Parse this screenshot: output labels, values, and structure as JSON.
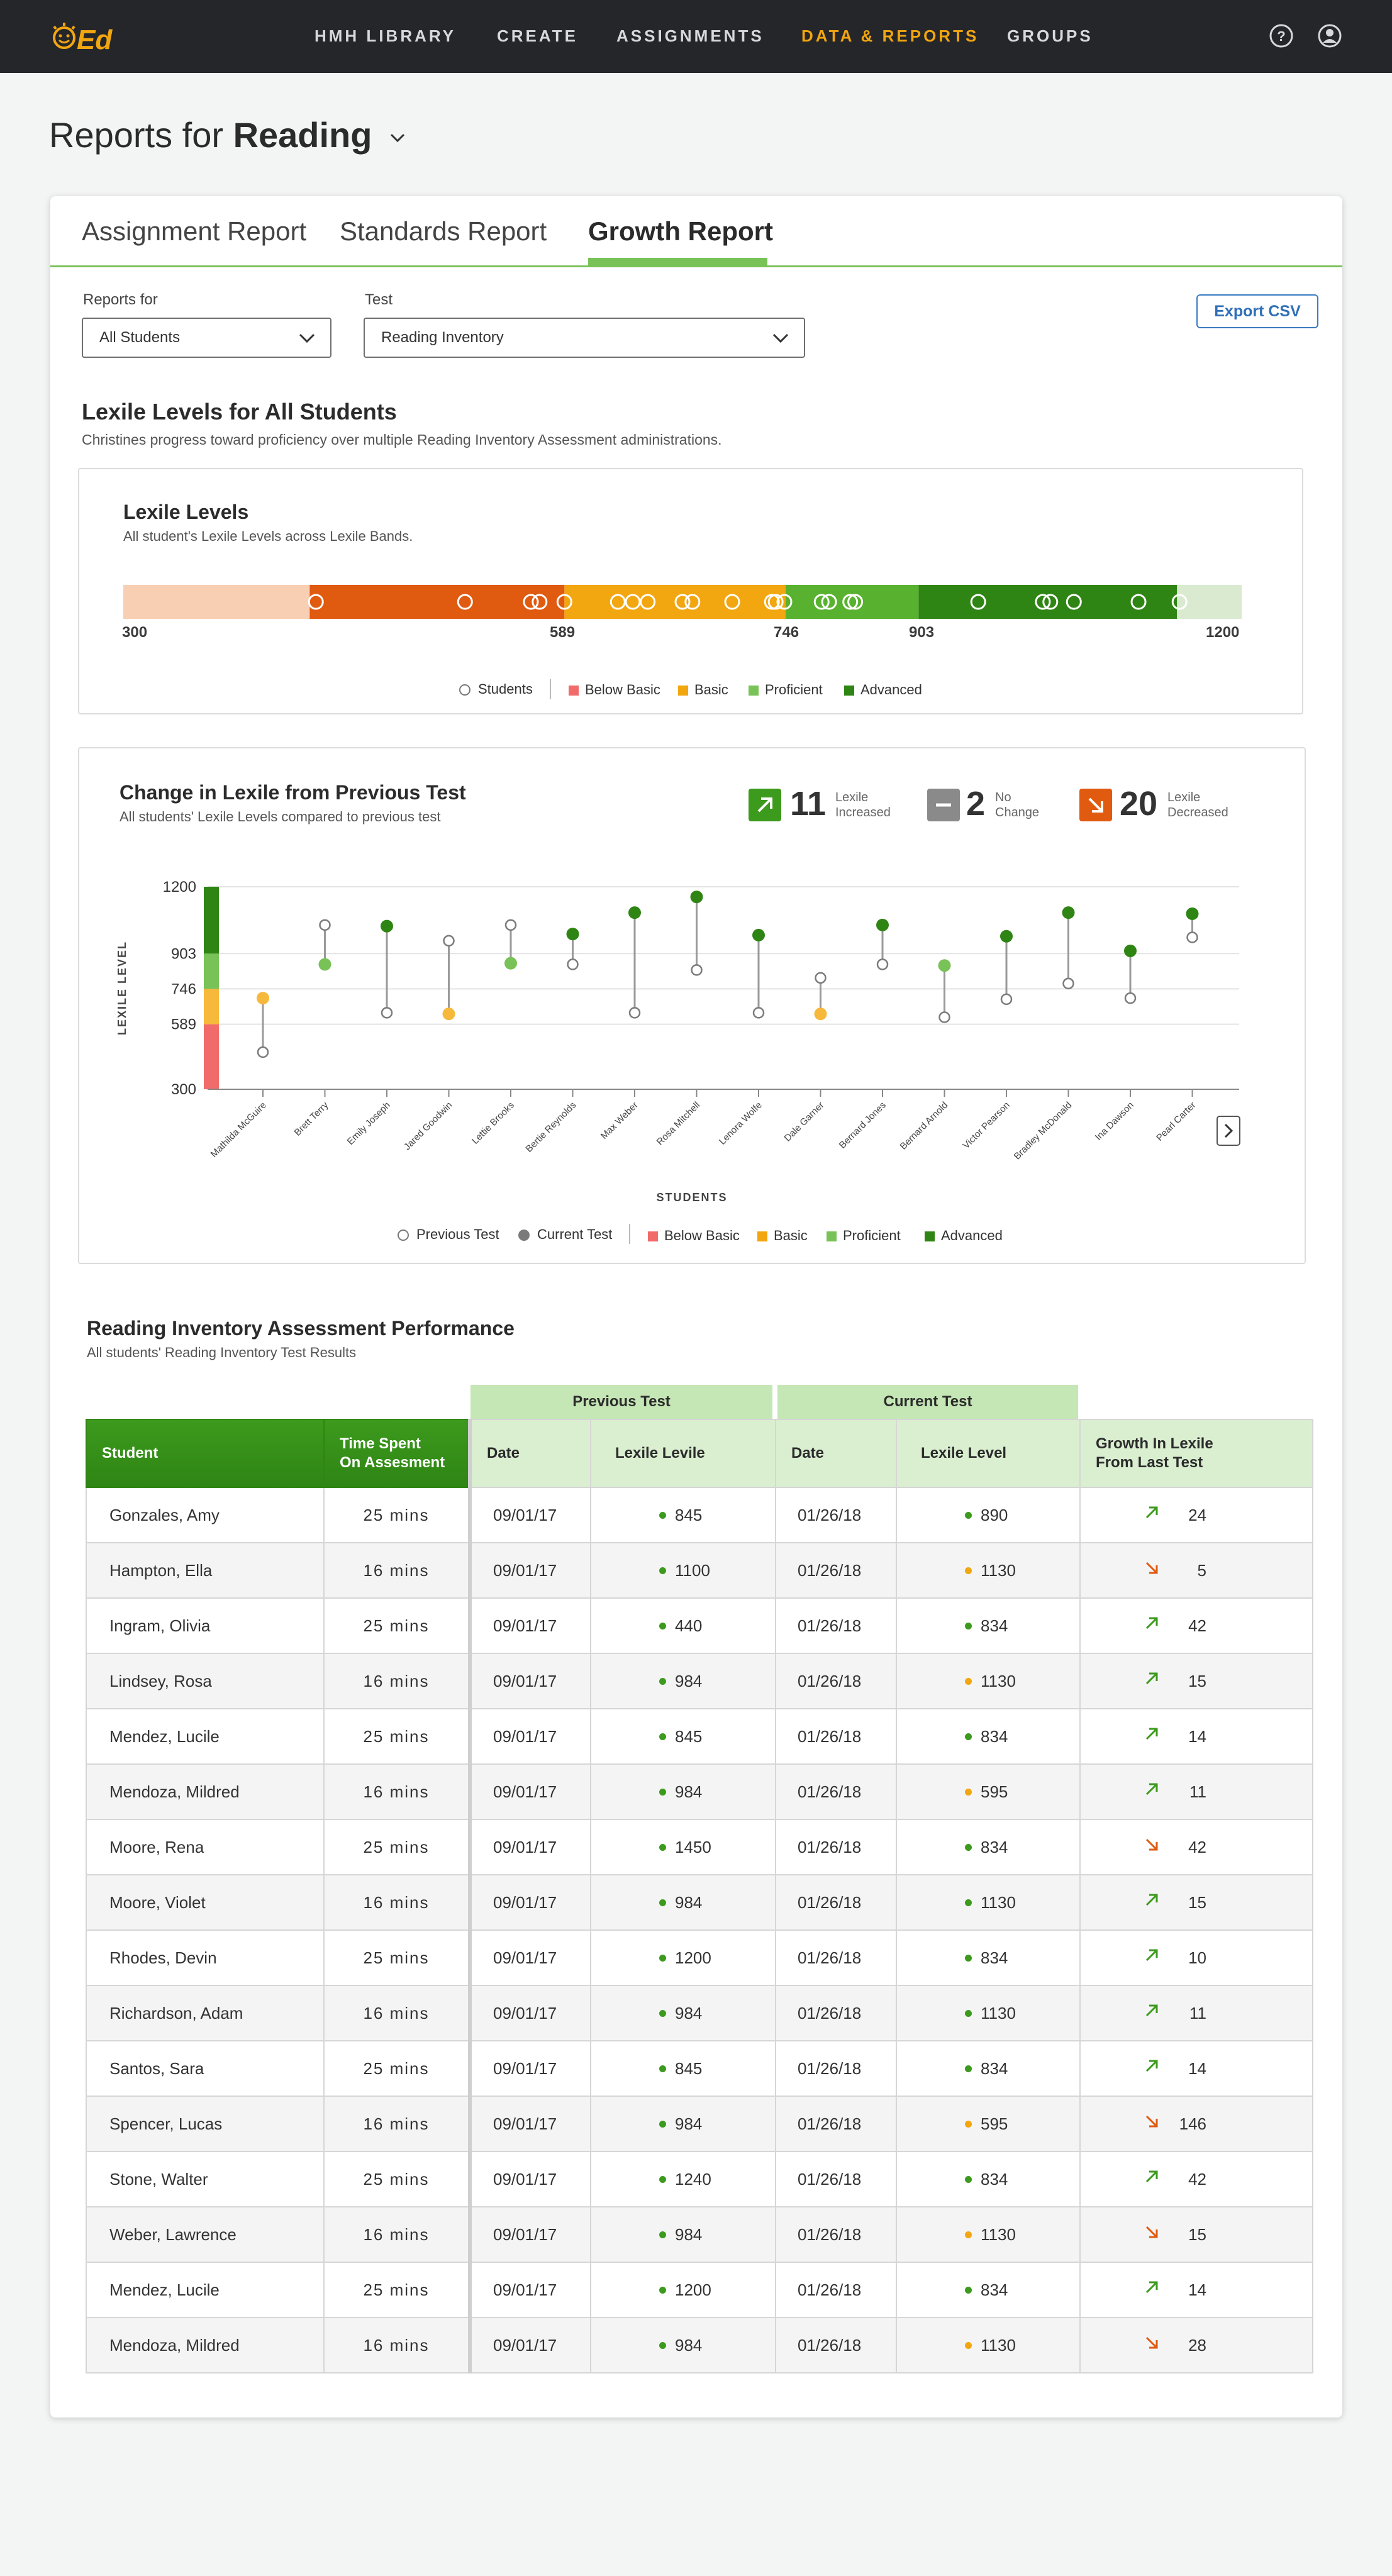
{
  "nav": {
    "items": [
      {
        "label": "HMH LIBRARY",
        "active": false
      },
      {
        "label": "CREATE",
        "active": false
      },
      {
        "label": "ASSIGNMENTS",
        "active": false
      },
      {
        "label": "DATA & REPORTS",
        "active": true
      },
      {
        "label": "GROUPS",
        "active": false
      }
    ],
    "icons": [
      "help-icon",
      "user-icon"
    ]
  },
  "page": {
    "title_prefix": "Reports for",
    "title_subject": "Reading"
  },
  "tabs": [
    {
      "label": "Assignment Report",
      "active": false
    },
    {
      "label": "Standards Report",
      "active": false
    },
    {
      "label": "Growth Report",
      "active": true
    }
  ],
  "filters": {
    "reports_for_label": "Reports for",
    "reports_for_value": "All Students",
    "test_label": "Test",
    "test_value": "Reading Inventory",
    "export_label": "Export CSV"
  },
  "section1": {
    "title": "Lexile Levels for All Students",
    "subtitle": "Christines progress toward proficiency over multiple Reading Inventory Assessment administrations."
  },
  "lexile_panel": {
    "title": "Lexile Levels",
    "subtitle": "All student's Lexile Levels across Lexile Bands.",
    "ticks": [
      "300",
      "589",
      "746",
      "903",
      "1200"
    ],
    "legend": {
      "students": "Students",
      "below_basic": "Below Basic",
      "basic": "Basic",
      "proficient": "Proficient",
      "advanced": "Advanced"
    }
  },
  "change_panel": {
    "title": "Change in Lexile from Previous Test",
    "subtitle": "All students' Lexile Levels compared to previous test",
    "stats": [
      {
        "value": "11",
        "label1": "Lexile",
        "label2": "Increased",
        "color": "#3c9a1d",
        "icon": "arrow-up-right-icon"
      },
      {
        "value": "2",
        "label1": "No",
        "label2": "Change",
        "color": "#8a8a8a",
        "icon": "minus-icon"
      },
      {
        "value": "20",
        "label1": "Lexile",
        "label2": "Decreased",
        "color": "#e05a10",
        "icon": "arrow-down-right-icon"
      }
    ],
    "legend": {
      "previous": "Previous Test",
      "current": "Current Test",
      "below_basic": "Below Basic",
      "basic": "Basic",
      "proficient": "Proficient",
      "advanced": "Advanced"
    }
  },
  "chart_data": {
    "type": "scatter",
    "ylabel": "LEXILE LEVEL",
    "xlabel": "STUDENTS",
    "yticks": [
      300,
      589,
      746,
      903,
      1200
    ],
    "ylim": [
      300,
      1200
    ],
    "band_colors": {
      "below_basic": "#f26b6b",
      "basic": "#f6b93b",
      "proficient": "#78c257",
      "advanced": "#2f8514"
    },
    "series": [
      {
        "name": "Previous Test"
      },
      {
        "name": "Current Test"
      }
    ],
    "students": [
      {
        "name": "Mathilda McGuire",
        "previous": 465,
        "current": 705
      },
      {
        "name": "Brett Terry",
        "previous": 1030,
        "current": 855
      },
      {
        "name": "Emily Joseph",
        "previous": 640,
        "current": 1025
      },
      {
        "name": "Jared Goodwin",
        "previous": 960,
        "current": 635
      },
      {
        "name": "Lettie Brooks",
        "previous": 1030,
        "current": 860
      },
      {
        "name": "Bertie Reynolds",
        "previous": 855,
        "current": 990
      },
      {
        "name": "Max Weber",
        "previous": 640,
        "current": 1085
      },
      {
        "name": "Rosa Mitchell",
        "previous": 830,
        "current": 1155
      },
      {
        "name": "Lenora Wolfe",
        "previous": 640,
        "current": 985
      },
      {
        "name": "Dale Garner",
        "previous": 795,
        "current": 635
      },
      {
        "name": "Bernard Jones",
        "previous": 855,
        "current": 1030
      },
      {
        "name": "Bernard Arnold",
        "previous": 620,
        "current": 850
      },
      {
        "name": "Victor Pearson",
        "previous": 700,
        "current": 980
      },
      {
        "name": "Bradley McDonald",
        "previous": 770,
        "current": 1085
      },
      {
        "name": "Ina Dawson",
        "previous": 705,
        "current": 915
      },
      {
        "name": "Pearl Carter",
        "previous": 975,
        "current": 1080
      }
    ]
  },
  "lexile_band_chart": {
    "type": "bar",
    "range": [
      300,
      1200
    ],
    "bands": [
      {
        "from": 300,
        "to": 450,
        "color": "#f8cfb3"
      },
      {
        "from": 450,
        "to": 655,
        "color": "#e05a10"
      },
      {
        "from": 655,
        "to": 833,
        "color": "#f2a60f"
      },
      {
        "from": 833,
        "to": 940,
        "color": "#58b22f"
      },
      {
        "from": 940,
        "to": 1148,
        "color": "#2f8514"
      },
      {
        "from": 1148,
        "to": 1200,
        "color": "#d9ead0"
      }
    ],
    "students": [
      455,
      575,
      628,
      635,
      655,
      698,
      710,
      722,
      750,
      758,
      790,
      822,
      825,
      832,
      862,
      868,
      885,
      889,
      988,
      1040,
      1046,
      1065,
      1117,
      1150
    ]
  },
  "table": {
    "title": "Reading Inventory Assessment Performance",
    "subtitle": "All students'  Reading Inventory Test Results",
    "group_previous": "Previous Test",
    "group_current": "Current Test",
    "headers": {
      "student": "Student",
      "time1": "Time Spent",
      "time2": "On Assesment",
      "prev_date": "Date",
      "prev_level": "Lexile Levile",
      "cur_date": "Date",
      "cur_level": "Lexile Level",
      "growth1": "Growth In Lexile",
      "growth2": "From Last Test"
    },
    "rows": [
      {
        "student": "Gonzales, Amy",
        "time": "25 mins",
        "prev_date": "09/01/17",
        "prev_level": "845",
        "prev_color": "#3c9a1d",
        "cur_date": "01/26/18",
        "cur_level": "890",
        "cur_color": "#3c9a1d",
        "dir": "up",
        "growth": "24"
      },
      {
        "student": "Hampton, Ella",
        "time": "16 mins",
        "prev_date": "09/01/17",
        "prev_level": "1100",
        "prev_color": "#3c9a1d",
        "cur_date": "01/26/18",
        "cur_level": "1130",
        "cur_color": "#f2a60f",
        "dir": "down",
        "growth": "5"
      },
      {
        "student": "Ingram, Olivia",
        "time": "25 mins",
        "prev_date": "09/01/17",
        "prev_level": "440",
        "prev_color": "#3c9a1d",
        "cur_date": "01/26/18",
        "cur_level": "834",
        "cur_color": "#3c9a1d",
        "dir": "up",
        "growth": "42"
      },
      {
        "student": "Lindsey, Rosa",
        "time": "16 mins",
        "prev_date": "09/01/17",
        "prev_level": "984",
        "prev_color": "#3c9a1d",
        "cur_date": "01/26/18",
        "cur_level": "1130",
        "cur_color": "#f2a60f",
        "dir": "up",
        "growth": "15"
      },
      {
        "student": "Mendez, Lucile",
        "time": "25 mins",
        "prev_date": "09/01/17",
        "prev_level": "845",
        "prev_color": "#3c9a1d",
        "cur_date": "01/26/18",
        "cur_level": "834",
        "cur_color": "#3c9a1d",
        "dir": "up",
        "growth": "14"
      },
      {
        "student": "Mendoza, Mildred",
        "time": "16 mins",
        "prev_date": "09/01/17",
        "prev_level": "984",
        "prev_color": "#3c9a1d",
        "cur_date": "01/26/18",
        "cur_level": "595",
        "cur_color": "#f2a60f",
        "dir": "up",
        "growth": "11"
      },
      {
        "student": "Moore, Rena",
        "time": "25 mins",
        "prev_date": "09/01/17",
        "prev_level": "1450",
        "prev_color": "#3c9a1d",
        "cur_date": "01/26/18",
        "cur_level": "834",
        "cur_color": "#3c9a1d",
        "dir": "down",
        "growth": "42"
      },
      {
        "student": "Moore, Violet",
        "time": "16 mins",
        "prev_date": "09/01/17",
        "prev_level": "984",
        "prev_color": "#3c9a1d",
        "cur_date": "01/26/18",
        "cur_level": "1130",
        "cur_color": "#3c9a1d",
        "dir": "up",
        "growth": "15"
      },
      {
        "student": "Rhodes, Devin",
        "time": "25 mins",
        "prev_date": "09/01/17",
        "prev_level": "1200",
        "prev_color": "#3c9a1d",
        "cur_date": "01/26/18",
        "cur_level": "834",
        "cur_color": "#3c9a1d",
        "dir": "up",
        "growth": "10"
      },
      {
        "student": "Richardson, Adam",
        "time": "16 mins",
        "prev_date": "09/01/17",
        "prev_level": "984",
        "prev_color": "#3c9a1d",
        "cur_date": "01/26/18",
        "cur_level": "1130",
        "cur_color": "#3c9a1d",
        "dir": "up",
        "growth": "11"
      },
      {
        "student": "Santos, Sara",
        "time": "25 mins",
        "prev_date": "09/01/17",
        "prev_level": "845",
        "prev_color": "#3c9a1d",
        "cur_date": "01/26/18",
        "cur_level": "834",
        "cur_color": "#3c9a1d",
        "dir": "up",
        "growth": "14"
      },
      {
        "student": "Spencer, Lucas",
        "time": "16 mins",
        "prev_date": "09/01/17",
        "prev_level": "984",
        "prev_color": "#3c9a1d",
        "cur_date": "01/26/18",
        "cur_level": "595",
        "cur_color": "#f2a60f",
        "dir": "down",
        "growth": "146"
      },
      {
        "student": "Stone, Walter",
        "time": "25 mins",
        "prev_date": "09/01/17",
        "prev_level": "1240",
        "prev_color": "#3c9a1d",
        "cur_date": "01/26/18",
        "cur_level": "834",
        "cur_color": "#3c9a1d",
        "dir": "up",
        "growth": "42"
      },
      {
        "student": "Weber, Lawrence",
        "time": "16 mins",
        "prev_date": "09/01/17",
        "prev_level": "984",
        "prev_color": "#3c9a1d",
        "cur_date": "01/26/18",
        "cur_level": "1130",
        "cur_color": "#f2a60f",
        "dir": "down",
        "growth": "15"
      },
      {
        "student": "Mendez, Lucile",
        "time": "25 mins",
        "prev_date": "09/01/17",
        "prev_level": "1200",
        "prev_color": "#3c9a1d",
        "cur_date": "01/26/18",
        "cur_level": "834",
        "cur_color": "#3c9a1d",
        "dir": "up",
        "growth": "14"
      },
      {
        "student": "Mendoza, Mildred",
        "time": "16 mins",
        "prev_date": "09/01/17",
        "prev_level": "984",
        "prev_color": "#3c9a1d",
        "cur_date": "01/26/18",
        "cur_level": "1130",
        "cur_color": "#f2a60f",
        "dir": "down",
        "growth": "28"
      }
    ]
  },
  "colors": {
    "accent": "#f2a60f",
    "up": "#3c9a1d",
    "down": "#e05a10"
  }
}
